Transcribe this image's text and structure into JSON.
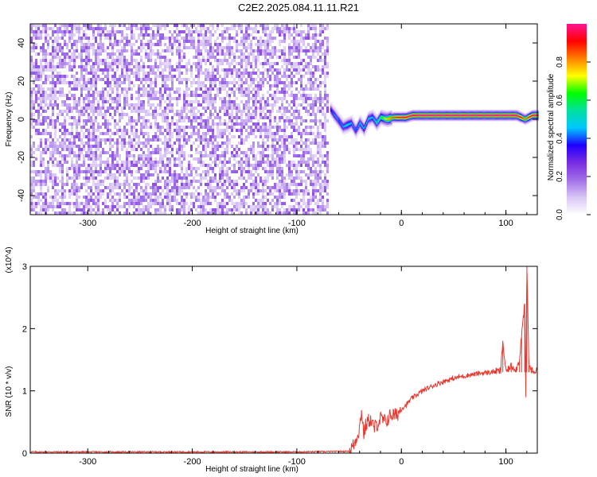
{
  "figure": {
    "title": "C2E2.2025.084.11.11.R21"
  },
  "chart_data": [
    {
      "type": "heatmap",
      "xlabel": "Height of straight line (km)",
      "ylabel": "Frequency (Hz)",
      "xlim": [
        -355,
        130
      ],
      "ylim": [
        -50,
        50
      ],
      "x_ticks": [
        -300,
        -200,
        -100,
        0,
        100
      ],
      "y_ticks": [
        -40,
        -20,
        0,
        20,
        40
      ],
      "grid": false,
      "colorbar": {
        "label": "Normalized spectral amplitude",
        "range": [
          0,
          1
        ],
        "ticks": [
          "0.0",
          "0.2",
          "0.4",
          "0.6",
          "0.8"
        ],
        "colors": [
          "#ffffff",
          "#d9c6f5",
          "#a070e8",
          "#7a2be2",
          "#1f00ff",
          "#00c8ff",
          "#00e0a0",
          "#00ff00",
          "#ffff00",
          "#ff8000",
          "#ff0000",
          "#ff1493"
        ]
      },
      "noise_region": {
        "x_from": -355,
        "x_to": -70,
        "typical_amplitude": 0.12
      },
      "ridge": {
        "x": [
          -68,
          -64,
          -60,
          -56,
          -52,
          -48,
          -44,
          -40,
          -36,
          -32,
          -28,
          -24,
          -20,
          -14,
          -8,
          -2,
          4,
          10,
          20,
          40,
          60,
          80,
          95,
          110,
          118,
          125,
          130
        ],
        "frequency": [
          5,
          2,
          -1,
          -4,
          -3,
          -2,
          -6,
          -2,
          -5,
          0,
          1,
          -2,
          1,
          0,
          1,
          1,
          1,
          2,
          2,
          2,
          2,
          2,
          2,
          2,
          0,
          2,
          2
        ],
        "amplitude": [
          0.35,
          0.45,
          0.4,
          0.45,
          0.5,
          0.45,
          0.4,
          0.5,
          0.45,
          0.5,
          0.45,
          0.55,
          0.6,
          0.75,
          0.85,
          0.9,
          0.95,
          0.98,
          1.0,
          1.0,
          1.0,
          1.0,
          1.0,
          1.0,
          0.8,
          0.95,
          1.0
        ]
      }
    },
    {
      "type": "line",
      "xlabel": "Height of straight line (km)",
      "ylabel": "SNR (10 * v/v)",
      "y_multiplier": "(x10^4)",
      "xlim": [
        -355,
        130
      ],
      "ylim": [
        0,
        3
      ],
      "x_ticks": [
        -300,
        -200,
        -100,
        0,
        100
      ],
      "y_ticks": [
        0,
        1,
        2,
        3
      ],
      "grid": false,
      "series": [
        {
          "color": "#e8382f",
          "x": [
            -355,
            -100,
            -50,
            -45,
            -40,
            -38,
            -36,
            -34,
            -30,
            -26,
            -20,
            -15,
            -10,
            -5,
            0,
            5,
            10,
            20,
            30,
            40,
            50,
            60,
            70,
            80,
            90,
            95,
            97,
            100,
            105,
            110,
            113,
            115,
            118,
            119,
            120,
            122,
            125,
            130
          ],
          "y": [
            0.02,
            0.02,
            0.03,
            0.15,
            0.4,
            0.7,
            0.3,
            0.45,
            0.55,
            0.4,
            0.55,
            0.5,
            0.62,
            0.6,
            0.72,
            0.78,
            0.88,
            1.0,
            1.08,
            1.15,
            1.2,
            1.24,
            1.27,
            1.29,
            1.31,
            1.32,
            1.8,
            1.3,
            1.4,
            1.35,
            1.5,
            1.9,
            2.4,
            0.9,
            3.05,
            1.4,
            1.32,
            1.32
          ]
        }
      ]
    }
  ]
}
